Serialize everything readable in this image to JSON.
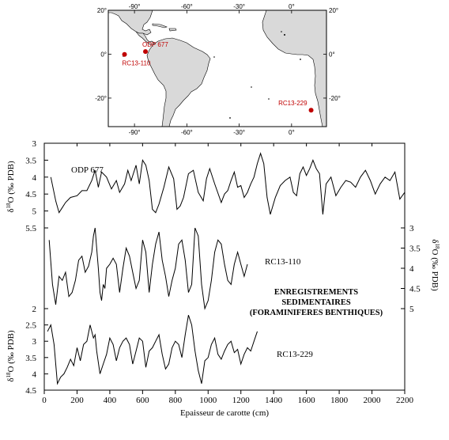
{
  "chart_data": {
    "type": "line",
    "title": "",
    "annotation": [
      "ENREGISTREMENTS",
      "SEDIMENTAIRES",
      "(FORAMINIFERES BENTHIQUES)"
    ],
    "xlabel": "Epaisseur de carotte (cm)",
    "xlim": [
      0,
      2200
    ],
    "xticks": [
      "0",
      "200",
      "400",
      "600",
      "800",
      "1000",
      "1200",
      "1400",
      "1600",
      "1800",
      "2000",
      "2200"
    ],
    "ylabel_parts": [
      "δ",
      "18",
      "O (‰ PDB)"
    ],
    "y_axes": [
      {
        "side": "left",
        "range": [
          3,
          5.5
        ],
        "inverted": true,
        "ticks": [
          "3",
          "3.5",
          "4",
          "4.5",
          "5",
          "5.5"
        ]
      },
      {
        "side": "right",
        "range": [
          3,
          5
        ],
        "inverted": true,
        "ticks": [
          "3",
          "3.5",
          "4",
          "4.5",
          "5"
        ]
      },
      {
        "side": "left",
        "range": [
          2,
          4.5
        ],
        "inverted": true,
        "ticks": [
          "2",
          "2.5",
          "3",
          "3.5",
          "4",
          "4.5"
        ]
      }
    ],
    "series": [
      {
        "name": "ODP 677",
        "axis": 0,
        "x": [
          40,
          70,
          90,
          110,
          130,
          160,
          200,
          230,
          260,
          290,
          310,
          330,
          350,
          380,
          410,
          440,
          460,
          490,
          510,
          530,
          560,
          580,
          600,
          620,
          640,
          660,
          680,
          700,
          730,
          760,
          790,
          810,
          830,
          850,
          880,
          910,
          940,
          970,
          990,
          1010,
          1040,
          1080,
          1100,
          1120,
          1140,
          1160,
          1180,
          1200,
          1220,
          1240,
          1260,
          1280,
          1300,
          1320,
          1340,
          1360,
          1380,
          1410,
          1440,
          1470,
          1500,
          1520,
          1540,
          1560,
          1580,
          1600,
          1620,
          1640,
          1660,
          1680,
          1700,
          1720,
          1750,
          1780,
          1810,
          1840,
          1870,
          1900,
          1930,
          1960,
          1990,
          2020,
          2050,
          2080,
          2110,
          2140,
          2170,
          2200
        ],
        "y": [
          4.0,
          4.7,
          5.05,
          4.9,
          4.75,
          4.6,
          4.55,
          4.4,
          4.4,
          4.1,
          3.8,
          4.3,
          3.85,
          4.0,
          4.35,
          4.1,
          4.45,
          4.2,
          3.8,
          4.1,
          3.65,
          4.2,
          3.5,
          3.65,
          4.1,
          4.95,
          5.05,
          4.8,
          4.3,
          3.7,
          4.05,
          4.95,
          4.85,
          4.6,
          3.9,
          3.8,
          4.45,
          4.7,
          4.05,
          3.75,
          4.2,
          4.75,
          4.5,
          4.4,
          4.1,
          3.85,
          4.3,
          4.25,
          4.6,
          4.45,
          4.2,
          4.0,
          3.6,
          3.3,
          3.6,
          4.6,
          5.1,
          4.6,
          4.25,
          4.1,
          4.0,
          4.45,
          4.55,
          3.9,
          3.7,
          3.95,
          3.75,
          3.5,
          3.75,
          3.9,
          5.1,
          4.2,
          4.0,
          4.55,
          4.3,
          4.1,
          4.15,
          4.3,
          4.0,
          3.8,
          4.1,
          4.5,
          4.2,
          4.0,
          4.1,
          3.85,
          4.65,
          4.45
        ]
      },
      {
        "name": "RC13-110",
        "axis": 1,
        "x": [
          30,
          50,
          70,
          90,
          110,
          130,
          150,
          170,
          190,
          210,
          230,
          250,
          270,
          290,
          300,
          310,
          320,
          330,
          340,
          350,
          360,
          370,
          380,
          400,
          420,
          440,
          460,
          480,
          500,
          520,
          540,
          560,
          580,
          600,
          620,
          640,
          660,
          680,
          700,
          720,
          740,
          760,
          780,
          800,
          820,
          840,
          860,
          880,
          900,
          920,
          940,
          960,
          980,
          1000,
          1020,
          1040,
          1060,
          1080,
          1100,
          1120,
          1140,
          1160,
          1180,
          1200,
          1220,
          1240
        ],
        "y": [
          3.3,
          4.4,
          4.9,
          4.2,
          4.3,
          4.1,
          4.7,
          4.6,
          4.3,
          3.8,
          3.7,
          4.1,
          3.95,
          3.6,
          3.2,
          3.0,
          3.5,
          4.0,
          4.6,
          4.8,
          4.4,
          4.5,
          4.0,
          3.9,
          3.75,
          3.9,
          4.6,
          4.0,
          3.5,
          3.7,
          4.1,
          4.5,
          4.3,
          3.3,
          3.6,
          4.6,
          3.9,
          3.4,
          3.1,
          3.8,
          4.2,
          4.7,
          4.3,
          4.0,
          3.4,
          3.3,
          3.8,
          4.6,
          4.4,
          3.0,
          3.2,
          4.4,
          5.0,
          4.8,
          4.3,
          3.6,
          3.3,
          3.4,
          3.9,
          4.3,
          4.4,
          3.9,
          3.6,
          3.9,
          4.2,
          3.9
        ]
      },
      {
        "name": "RC13-229",
        "axis": 2,
        "x": [
          20,
          40,
          60,
          80,
          100,
          120,
          140,
          160,
          180,
          200,
          220,
          240,
          260,
          280,
          300,
          310,
          320,
          340,
          360,
          380,
          400,
          420,
          440,
          460,
          480,
          500,
          520,
          540,
          560,
          580,
          600,
          620,
          640,
          660,
          680,
          700,
          720,
          740,
          760,
          780,
          800,
          820,
          840,
          860,
          880,
          900,
          920,
          940,
          960,
          980,
          1000,
          1020,
          1040,
          1060,
          1080,
          1100,
          1120,
          1140,
          1160,
          1180,
          1200,
          1220,
          1240,
          1260,
          1280,
          1300
        ],
        "y": [
          2.7,
          2.5,
          3.1,
          4.3,
          4.1,
          4.0,
          3.8,
          3.55,
          3.75,
          3.2,
          3.6,
          3.1,
          3.0,
          2.5,
          2.9,
          2.8,
          3.3,
          4.0,
          3.7,
          3.4,
          2.9,
          3.1,
          3.6,
          3.2,
          3.0,
          2.9,
          3.1,
          3.7,
          3.3,
          2.9,
          3.0,
          3.8,
          3.3,
          3.2,
          3.0,
          2.8,
          3.4,
          3.85,
          3.7,
          3.2,
          3.0,
          3.1,
          3.5,
          2.8,
          2.2,
          2.5,
          3.3,
          3.9,
          4.3,
          3.6,
          3.5,
          3.1,
          2.9,
          3.4,
          3.55,
          3.3,
          3.1,
          3.0,
          3.35,
          3.25,
          3.7,
          3.4,
          3.2,
          3.3,
          3.0,
          2.7
        ]
      }
    ]
  },
  "map": {
    "lon_ticks": [
      "-90°",
      "-60°",
      "-30°",
      "0°"
    ],
    "lat_ticks": [
      "20°",
      "0°",
      "-20°"
    ],
    "lat_ticks_right": [
      "20°",
      "0°",
      "-20°"
    ],
    "sites": [
      {
        "label": "ODP 677",
        "lon": -83.7,
        "lat": 1.2
      },
      {
        "label": "RC13-110",
        "lon": -95.7,
        "lat": -0.1
      },
      {
        "label": "RC13-229",
        "lon": 11.2,
        "lat": -25.5
      }
    ],
    "site_color": "#c00000",
    "land_color": "#d9d9d9"
  }
}
